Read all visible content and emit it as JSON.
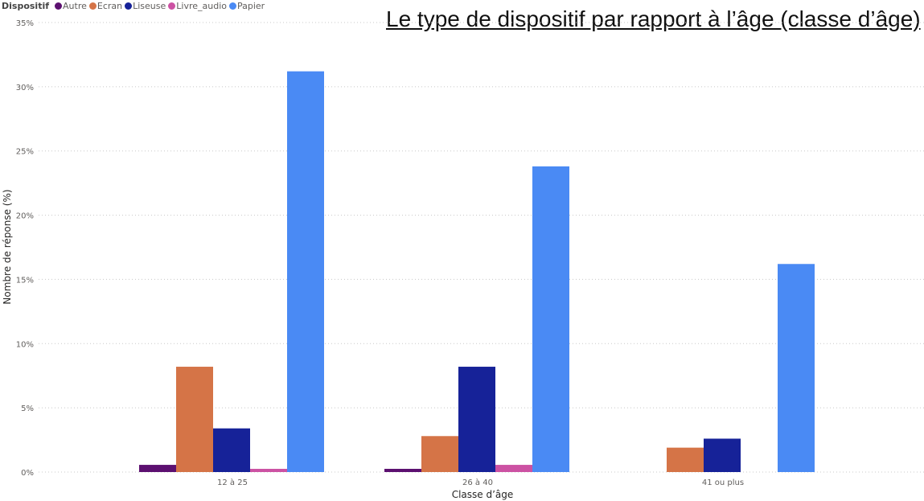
{
  "chart_data": {
    "type": "bar",
    "title": "Le type de dispositif par rapport à l’âge (classe d’âge)",
    "xlabel": "Classe d’âge",
    "ylabel": "Nombre de réponse (%)",
    "ylim": [
      0,
      35
    ],
    "yticks": [
      "0%",
      "5%",
      "10%",
      "15%",
      "20%",
      "25%",
      "30%",
      "35%"
    ],
    "grid": true,
    "legend_title": "Dispositif",
    "legend_position": "top-left",
    "categories": [
      "12 à 25",
      "26 à 40",
      "41 ou plus"
    ],
    "series": [
      {
        "name": "Autre",
        "color": "#5c1070",
        "values": [
          0.56,
          0.25,
          null
        ]
      },
      {
        "name": "Ecran",
        "color": "#d57447",
        "values": [
          8.2,
          2.8,
          1.9
        ]
      },
      {
        "name": "Liseuse",
        "color": "#162298",
        "values": [
          3.4,
          8.2,
          2.6
        ]
      },
      {
        "name": "Livre_audio",
        "color": "#cc52a3",
        "values": [
          0.25,
          0.56,
          null
        ]
      },
      {
        "name": "Papier",
        "color": "#4a8af4",
        "values": [
          31.2,
          23.8,
          16.2
        ]
      }
    ]
  }
}
